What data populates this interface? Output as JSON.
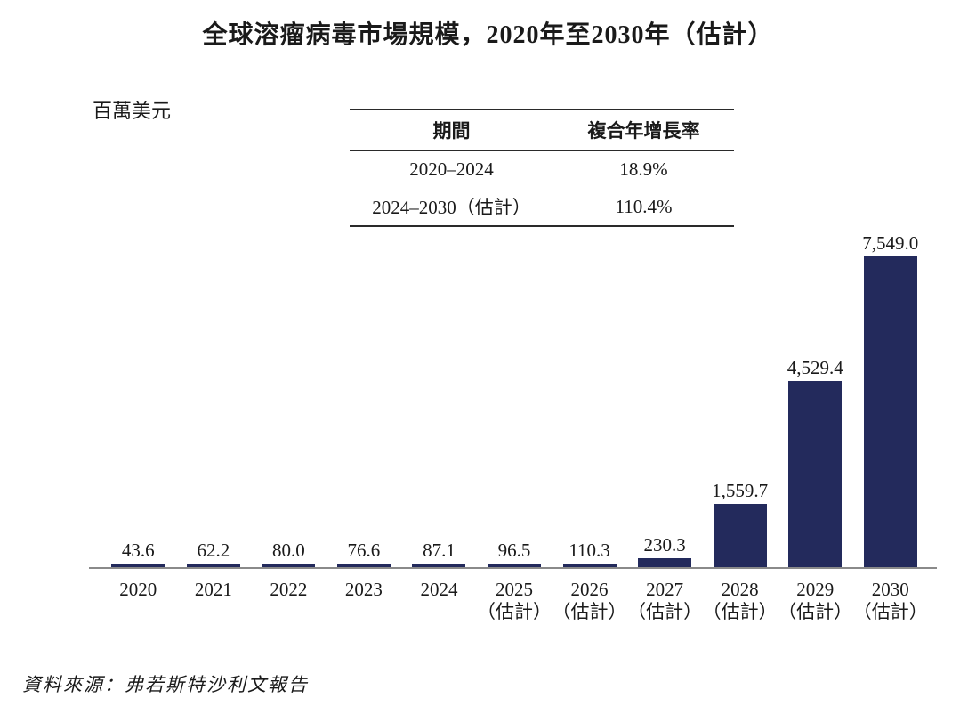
{
  "title": "全球溶瘤病毒市場規模，2020年至2030年（估計）",
  "unit_label": "百萬美元",
  "source_note": "資料來源：弗若斯特沙利文報告",
  "cagr_table": {
    "headers": [
      "期間",
      "複合年增長率"
    ],
    "rows": [
      {
        "period": "2020–2024",
        "cagr": "18.9%"
      },
      {
        "period": "2024–2030（估計）",
        "cagr": "110.4%"
      }
    ]
  },
  "chart_data": {
    "type": "bar",
    "title": "全球溶瘤病毒市場規模，2020年至2030年（估計）",
    "ylabel": "百萬美元",
    "categories": [
      "2020",
      "2021",
      "2022",
      "2023",
      "2024",
      "2025（估計）",
      "2026（估計）",
      "2027（估計）",
      "2028（估計）",
      "2029（估計）",
      "2030（估計）"
    ],
    "x_tick_lines": [
      [
        "2020",
        ""
      ],
      [
        "2021",
        ""
      ],
      [
        "2022",
        ""
      ],
      [
        "2023",
        ""
      ],
      [
        "2024",
        ""
      ],
      [
        "2025",
        "（估計）"
      ],
      [
        "2026",
        "（估計）"
      ],
      [
        "2027",
        "（估計）"
      ],
      [
        "2028",
        "（估計）"
      ],
      [
        "2029",
        "（估計）"
      ],
      [
        "2030",
        "（估計）"
      ]
    ],
    "values": [
      43.6,
      62.2,
      80.0,
      76.6,
      87.1,
      96.5,
      110.3,
      230.3,
      1559.7,
      4529.4,
      7549.0
    ],
    "value_labels": [
      "43.6",
      "62.2",
      "80.0",
      "76.6",
      "87.1",
      "96.5",
      "110.3",
      "230.3",
      "1,559.7",
      "4,529.4",
      "7,549.0"
    ],
    "ylim": [
      0,
      7549
    ],
    "grid": false,
    "legend_position": "none",
    "bar_color": "#232a5c",
    "axis_color": "#8a8a8a"
  }
}
